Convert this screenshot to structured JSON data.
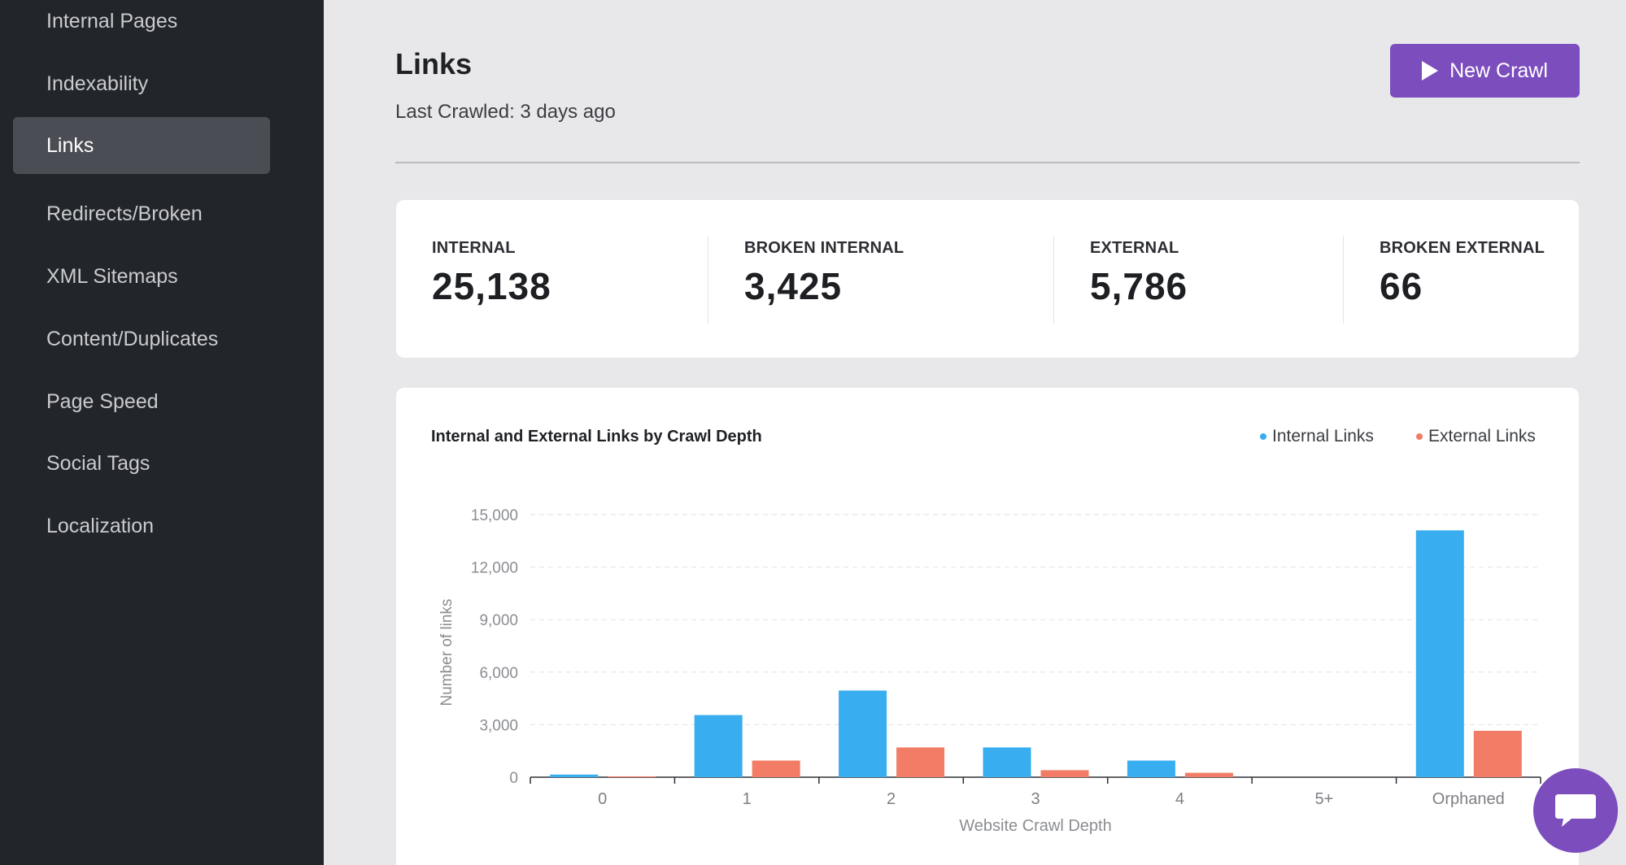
{
  "sidebar": {
    "items": [
      {
        "label": "Internal Pages"
      },
      {
        "label": "Indexability"
      },
      {
        "label": "Links"
      },
      {
        "label": "Redirects/Broken"
      },
      {
        "label": "XML Sitemaps"
      },
      {
        "label": "Content/Duplicates"
      },
      {
        "label": "Page Speed"
      },
      {
        "label": "Social Tags"
      },
      {
        "label": "Localization"
      }
    ],
    "active": "Links"
  },
  "header": {
    "title": "Links",
    "subtitle": "Last Crawled: 3 days ago",
    "new_crawl_label": "New Crawl"
  },
  "stats": [
    {
      "label": "INTERNAL",
      "value": "25,138"
    },
    {
      "label": "BROKEN INTERNAL",
      "value": "3,425"
    },
    {
      "label": "EXTERNAL",
      "value": "5,786"
    },
    {
      "label": "BROKEN EXTERNAL",
      "value": "66"
    }
  ],
  "colors": {
    "accent": "#7c4dbd",
    "internal": "#38aef0",
    "external": "#f27c66"
  },
  "chart_data": {
    "type": "bar",
    "title": "Internal and External Links by Crawl Depth",
    "xlabel": "Website Crawl Depth",
    "ylabel": "Number of links",
    "categories": [
      "0",
      "1",
      "2",
      "3",
      "4",
      "5+",
      "Orphaned"
    ],
    "series": [
      {
        "name": "Internal Links",
        "values": [
          150,
          3550,
          4950,
          1700,
          950,
          0,
          14100
        ]
      },
      {
        "name": "External Links",
        "values": [
          50,
          950,
          1700,
          400,
          250,
          0,
          2650
        ]
      }
    ],
    "ylim": [
      0,
      15000
    ],
    "yticks": [
      "0",
      "3,000",
      "6,000",
      "9,000",
      "12,000",
      "15,000"
    ],
    "grid": true,
    "legend": "top-right"
  },
  "chat": {
    "icon": "chat-bubble-icon"
  }
}
